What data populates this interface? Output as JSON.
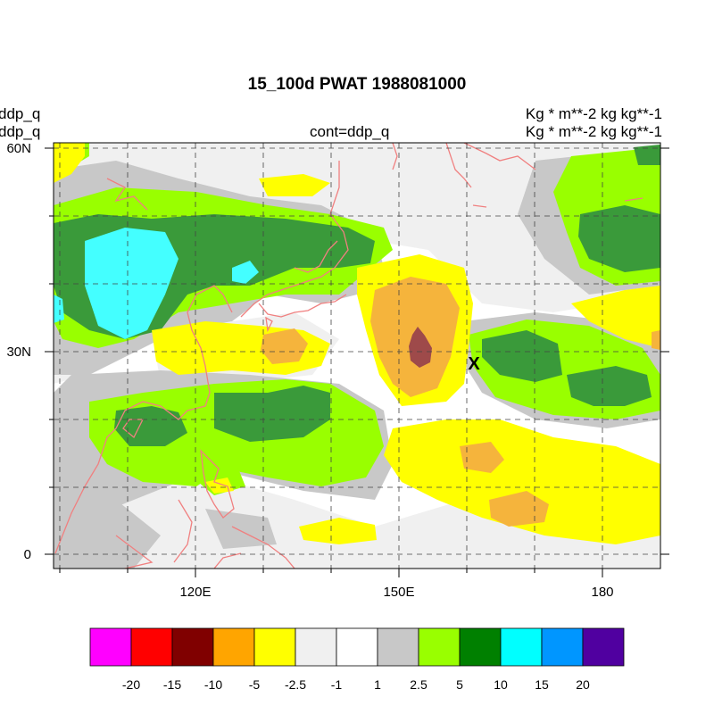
{
  "title": "15_100d PWAT  1988081000",
  "header": {
    "left_line1": "ddp_q",
    "left_line2": "ddp_q",
    "center": "cont=ddp_q",
    "right_line1": "Kg   * m**-2 kg kg**-1",
    "right_line2": "Kg   * m**-2 kg kg**-1"
  },
  "map": {
    "lon_labels": [
      "120E",
      "150E",
      "180"
    ],
    "lat_labels": [
      "60N",
      "30N",
      "0"
    ],
    "marker": "X",
    "coastline_color": "#f08080"
  },
  "colorbar": {
    "colors": [
      "#ff00ff",
      "#ff0000",
      "#800000",
      "#ffa500",
      "#ffff00",
      "#f0f0f0",
      "#ffffff",
      "#c8c8c8",
      "#99ff00",
      "#008000",
      "#00ffff",
      "#0096ff",
      "#5000a0"
    ],
    "labels": [
      "-20",
      "-15",
      "-10",
      "-5",
      "-2.5",
      "-1",
      "1",
      "2.5",
      "5",
      "10",
      "15",
      "20"
    ]
  }
}
